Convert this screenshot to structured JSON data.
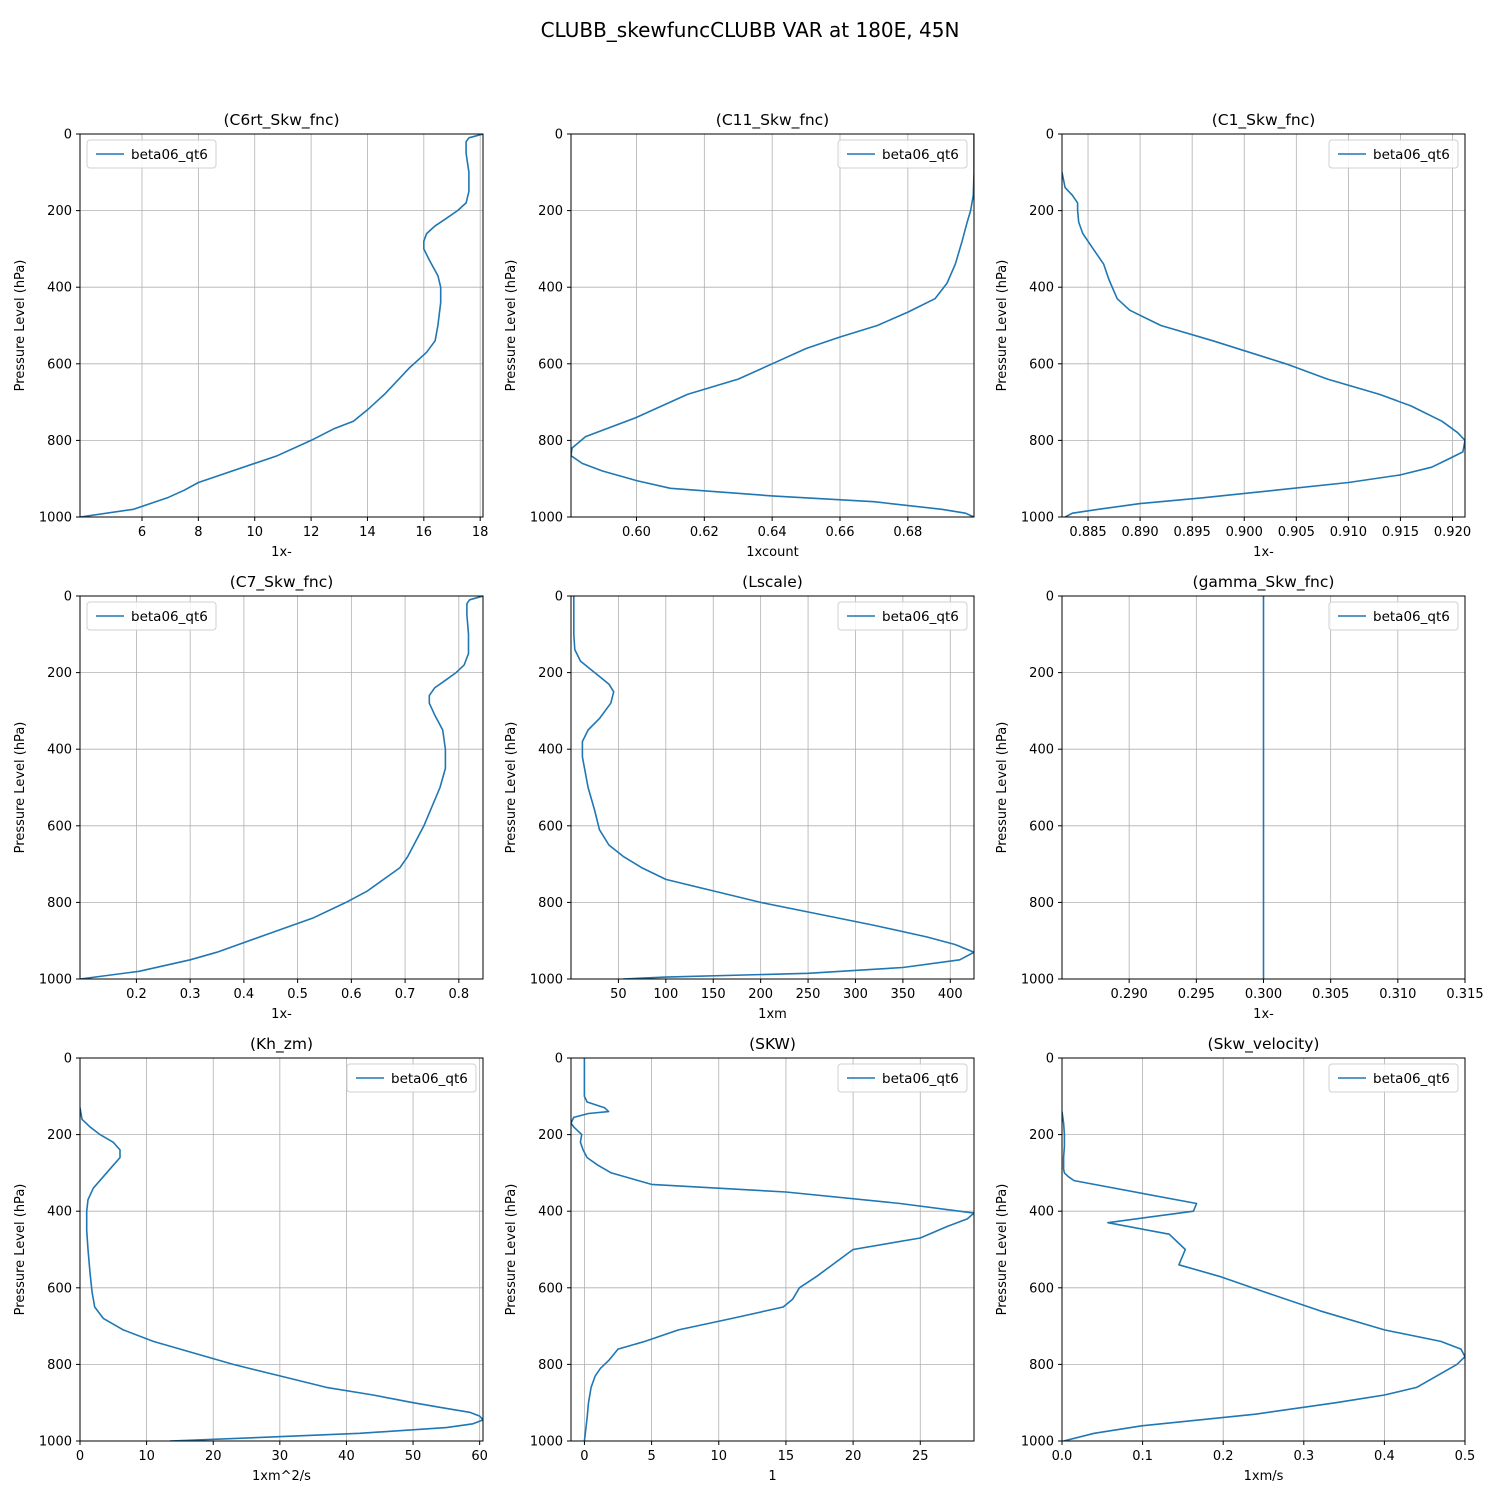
{
  "figure": {
    "title": "CLUBB_skewfuncCLUBB VAR at 180E, 45N"
  },
  "colors": {
    "line": "#1f77b4",
    "grid": "#b0b0b0",
    "axis": "#000000"
  },
  "chart_data": [
    {
      "type": "line",
      "title": "(C6rt_Skw_fnc)",
      "xlabel": "1x-",
      "ylabel": "Pressure Level (hPa)",
      "xlim": [
        3.8,
        18.1
      ],
      "ylim": [
        1000,
        0
      ],
      "xticks": [
        6,
        8,
        10,
        12,
        14,
        16,
        18
      ],
      "xtick_labels": [
        "6",
        "8",
        "10",
        "12",
        "14",
        "16",
        "18"
      ],
      "yticks": [
        0,
        200,
        400,
        600,
        800,
        1000
      ],
      "ytick_labels": [
        "0",
        "200",
        "400",
        "600",
        "800",
        "1000"
      ],
      "legend_loc": "upper-left",
      "series": [
        {
          "name": "beta06_qt6",
          "x": [
            18.1,
            17.6,
            17.5,
            17.5,
            17.6,
            17.6,
            17.5,
            17.2,
            16.8,
            16.4,
            16.1,
            16.0,
            16.0,
            16.2,
            16.5,
            16.6,
            16.6,
            16.5,
            16.4,
            16.1,
            15.5,
            14.6,
            14.0,
            13.5,
            12.8,
            12.0,
            10.8,
            8.0,
            7.5,
            6.9,
            5.7,
            3.8
          ],
          "y": [
            0,
            10,
            20,
            50,
            100,
            150,
            180,
            200,
            220,
            240,
            260,
            280,
            300,
            330,
            370,
            400,
            440,
            500,
            540,
            570,
            610,
            680,
            720,
            750,
            770,
            800,
            840,
            910,
            930,
            950,
            980,
            1000
          ]
        }
      ]
    },
    {
      "type": "line",
      "title": "(C11_Skw_fnc)",
      "xlabel": "1xcount",
      "ylabel": "Pressure Level (hPa)",
      "xlim": [
        0.5807,
        0.6995
      ],
      "ylim": [
        1000,
        0
      ],
      "xticks": [
        0.6,
        0.62,
        0.64,
        0.66,
        0.68
      ],
      "xtick_labels": [
        "0.60",
        "0.62",
        "0.64",
        "0.66",
        "0.68"
      ],
      "yticks": [
        0,
        200,
        400,
        600,
        800,
        1000
      ],
      "ytick_labels": [
        "0",
        "200",
        "400",
        "600",
        "800",
        "1000"
      ],
      "legend_loc": "upper-right",
      "series": [
        {
          "name": "beta06_qt6",
          "x": [
            0.6995,
            0.6995,
            0.6993,
            0.6985,
            0.6975,
            0.696,
            0.694,
            0.6915,
            0.688,
            0.68,
            0.671,
            0.66,
            0.65,
            0.64,
            0.63,
            0.615,
            0.6,
            0.585,
            0.581,
            0.5807,
            0.584,
            0.59,
            0.6,
            0.61,
            0.64,
            0.67,
            0.69,
            0.697,
            0.6995
          ],
          "y": [
            0,
            100,
            160,
            200,
            230,
            280,
            340,
            390,
            430,
            465,
            500,
            530,
            560,
            600,
            640,
            680,
            740,
            790,
            820,
            840,
            860,
            880,
            905,
            925,
            945,
            960,
            980,
            990,
            1000
          ]
        }
      ]
    },
    {
      "type": "line",
      "title": "(C1_Skw_fnc)",
      "xlabel": "1x-",
      "ylabel": "Pressure Level (hPa)",
      "xlim": [
        0.8825,
        0.9212
      ],
      "ylim": [
        1000,
        0
      ],
      "xticks": [
        0.885,
        0.89,
        0.895,
        0.9,
        0.905,
        0.91,
        0.915,
        0.92
      ],
      "xtick_labels": [
        "0.885",
        "0.890",
        "0.895",
        "0.900",
        "0.905",
        "0.910",
        "0.915",
        "0.920"
      ],
      "yticks": [
        0,
        200,
        400,
        600,
        800,
        1000
      ],
      "ytick_labels": [
        "0",
        "200",
        "400",
        "600",
        "800",
        "1000"
      ],
      "legend_loc": "upper-right",
      "series": [
        {
          "name": "beta06_qt6",
          "x": [
            0.8825,
            0.8828,
            0.8835,
            0.884,
            0.884,
            0.8841,
            0.8845,
            0.8855,
            0.8865,
            0.887,
            0.8878,
            0.889,
            0.892,
            0.897,
            0.904,
            0.908,
            0.913,
            0.916,
            0.919,
            0.9205,
            0.9212,
            0.921,
            0.9195,
            0.918,
            0.915,
            0.91,
            0.903,
            0.896,
            0.89,
            0.886,
            0.8835,
            0.8828
          ],
          "y": [
            100,
            140,
            160,
            180,
            200,
            230,
            260,
            300,
            340,
            380,
            430,
            460,
            500,
            540,
            600,
            640,
            680,
            710,
            750,
            780,
            800,
            830,
            850,
            870,
            890,
            910,
            930,
            950,
            965,
            980,
            990,
            1000
          ]
        }
      ]
    },
    {
      "type": "line",
      "title": "(C7_Skw_fnc)",
      "xlabel": "1x-",
      "ylabel": "Pressure Level (hPa)",
      "xlim": [
        0.095,
        0.845
      ],
      "ylim": [
        1000,
        0
      ],
      "xticks": [
        0.2,
        0.3,
        0.4,
        0.5,
        0.6,
        0.7,
        0.8
      ],
      "xtick_labels": [
        "0.2",
        "0.3",
        "0.4",
        "0.5",
        "0.6",
        "0.7",
        "0.8"
      ],
      "yticks": [
        0,
        200,
        400,
        600,
        800,
        1000
      ],
      "ytick_labels": [
        "0",
        "200",
        "400",
        "600",
        "800",
        "1000"
      ],
      "legend_loc": "upper-left",
      "series": [
        {
          "name": "beta06_qt6",
          "x": [
            0.845,
            0.82,
            0.815,
            0.815,
            0.818,
            0.818,
            0.81,
            0.795,
            0.775,
            0.755,
            0.745,
            0.745,
            0.755,
            0.77,
            0.775,
            0.775,
            0.765,
            0.735,
            0.705,
            0.69,
            0.66,
            0.63,
            0.59,
            0.53,
            0.45,
            0.35,
            0.3,
            0.205,
            0.095
          ],
          "y": [
            0,
            10,
            20,
            50,
            100,
            150,
            180,
            200,
            220,
            240,
            260,
            280,
            310,
            350,
            400,
            450,
            500,
            600,
            680,
            710,
            740,
            770,
            800,
            840,
            880,
            930,
            950,
            980,
            1000
          ]
        }
      ]
    },
    {
      "type": "line",
      "title": "(Lscale)",
      "xlabel": "1xm",
      "ylabel": "Pressure Level (hPa)",
      "xlim": [
        0,
        425
      ],
      "ylim": [
        1000,
        0
      ],
      "xticks": [
        50,
        100,
        150,
        200,
        250,
        300,
        350,
        400
      ],
      "xtick_labels": [
        "50",
        "100",
        "150",
        "200",
        "250",
        "300",
        "350",
        "400"
      ],
      "yticks": [
        0,
        200,
        400,
        600,
        800,
        1000
      ],
      "ytick_labels": [
        "0",
        "200",
        "400",
        "600",
        "800",
        "1000"
      ],
      "legend_loc": "upper-right",
      "series": [
        {
          "name": "beta06_qt6",
          "x": [
            3,
            3,
            3,
            4,
            10,
            25,
            40,
            45,
            42,
            30,
            18,
            12,
            12,
            18,
            25,
            30,
            40,
            55,
            75,
            100,
            150,
            200,
            260,
            320,
            375,
            405,
            425,
            410,
            350,
            250,
            100,
            55
          ],
          "y": [
            0,
            50,
            100,
            140,
            170,
            200,
            230,
            250,
            280,
            320,
            350,
            380,
            420,
            500,
            560,
            610,
            650,
            680,
            710,
            740,
            770,
            800,
            830,
            860,
            890,
            910,
            930,
            950,
            970,
            985,
            995,
            1000
          ]
        }
      ]
    },
    {
      "type": "line",
      "title": "(gamma_Skw_fnc)",
      "xlabel": "1x-",
      "ylabel": "Pressure Level (hPa)",
      "xlim": [
        0.285,
        0.315
      ],
      "ylim": [
        1000,
        0
      ],
      "xticks": [
        0.29,
        0.295,
        0.3,
        0.305,
        0.31,
        0.315
      ],
      "xtick_labels": [
        "0.290",
        "0.295",
        "0.300",
        "0.305",
        "0.310",
        "0.315"
      ],
      "yticks": [
        0,
        200,
        400,
        600,
        800,
        1000
      ],
      "ytick_labels": [
        "0",
        "200",
        "400",
        "600",
        "800",
        "1000"
      ],
      "legend_loc": "upper-right",
      "series": [
        {
          "name": "beta06_qt6",
          "x": [
            0.3,
            0.3
          ],
          "y": [
            0,
            1000
          ]
        }
      ]
    },
    {
      "type": "line",
      "title": "(Kh_zm)",
      "xlabel": "1xm^2/s",
      "ylabel": "Pressure Level (hPa)",
      "xlim": [
        0,
        60.5
      ],
      "ylim": [
        1000,
        0
      ],
      "xticks": [
        0,
        10,
        20,
        30,
        40,
        50,
        60
      ],
      "xtick_labels": [
        "0",
        "10",
        "20",
        "30",
        "40",
        "50",
        "60"
      ],
      "yticks": [
        0,
        200,
        400,
        600,
        800,
        1000
      ],
      "ytick_labels": [
        "0",
        "200",
        "400",
        "600",
        "800",
        "1000"
      ],
      "legend_loc": "upper-right",
      "series": [
        {
          "name": "beta06_qt6",
          "x": [
            0,
            0.3,
            1.5,
            3,
            5,
            6,
            6,
            5,
            3.5,
            2,
            1.2,
            1,
            1,
            1.2,
            1.5,
            1.8,
            2.2,
            3.5,
            6.5,
            11,
            17,
            23,
            30,
            37,
            44,
            50,
            55,
            58.5,
            60,
            60.5,
            59,
            55,
            42,
            28,
            13.5
          ],
          "y": [
            130,
            160,
            180,
            200,
            220,
            240,
            260,
            280,
            310,
            340,
            370,
            400,
            450,
            500,
            560,
            610,
            650,
            680,
            710,
            740,
            770,
            800,
            830,
            860,
            880,
            900,
            915,
            925,
            935,
            945,
            955,
            965,
            980,
            990,
            1000
          ]
        }
      ]
    },
    {
      "type": "line",
      "title": "(SKW)",
      "xlabel": "1",
      "ylabel": "Pressure Level (hPa)",
      "xlim": [
        -1,
        29
      ],
      "ylim": [
        1000,
        0
      ],
      "xticks": [
        0,
        5,
        10,
        15,
        20,
        25
      ],
      "xtick_labels": [
        "0",
        "5",
        "10",
        "15",
        "20",
        "25"
      ],
      "yticks": [
        0,
        200,
        400,
        600,
        800,
        1000
      ],
      "ytick_labels": [
        "0",
        "200",
        "400",
        "600",
        "800",
        "1000"
      ],
      "legend_loc": "upper-right",
      "series": [
        {
          "name": "beta06_qt6",
          "x": [
            0,
            0,
            0,
            0.2,
            1.5,
            1.8,
            0.3,
            -0.8,
            -1,
            -0.8,
            -0.2,
            -0.3,
            -0.1,
            0.2,
            1,
            2,
            5,
            15,
            23.5,
            29,
            28.5,
            27,
            25,
            20,
            17.3,
            16,
            15.5,
            14.8,
            11,
            7,
            4.5,
            2.5,
            1.8,
            1.2,
            0.8,
            0.5,
            0.3,
            0.2,
            0
          ],
          "y": [
            0,
            50,
            100,
            115,
            130,
            140,
            145,
            155,
            170,
            180,
            200,
            220,
            240,
            260,
            280,
            300,
            330,
            350,
            380,
            405,
            420,
            440,
            470,
            500,
            570,
            600,
            630,
            650,
            680,
            710,
            740,
            760,
            790,
            810,
            830,
            860,
            900,
            940,
            1000
          ]
        }
      ]
    },
    {
      "type": "line",
      "title": "(Skw_velocity)",
      "xlabel": "1xm/s",
      "ylabel": "Pressure Level (hPa)",
      "xlim": [
        0,
        0.5
      ],
      "ylim": [
        1000,
        0
      ],
      "xticks": [
        0.0,
        0.1,
        0.2,
        0.3,
        0.4,
        0.5
      ],
      "xtick_labels": [
        "0.0",
        "0.1",
        "0.2",
        "0.3",
        "0.4",
        "0.5"
      ],
      "yticks": [
        0,
        200,
        400,
        600,
        800,
        1000
      ],
      "ytick_labels": [
        "0",
        "200",
        "400",
        "600",
        "800",
        "1000"
      ],
      "legend_loc": "upper-right",
      "series": [
        {
          "name": "beta06_qt6",
          "x": [
            0,
            0.002,
            0.003,
            0.003,
            0.002,
            0.002,
            0.003,
            0.008,
            0.015,
            0.04,
            0.167,
            0.163,
            0.057,
            0.133,
            0.153,
            0.145,
            0.195,
            0.25,
            0.32,
            0.4,
            0.47,
            0.495,
            0.5,
            0.49,
            0.465,
            0.44,
            0.4,
            0.34,
            0.24,
            0.1,
            0.04,
            0.002
          ],
          "y": [
            140,
            170,
            200,
            230,
            260,
            290,
            300,
            310,
            320,
            330,
            380,
            400,
            430,
            460,
            500,
            540,
            570,
            610,
            660,
            710,
            740,
            760,
            780,
            800,
            830,
            860,
            880,
            900,
            930,
            960,
            980,
            1000
          ]
        }
      ]
    }
  ]
}
